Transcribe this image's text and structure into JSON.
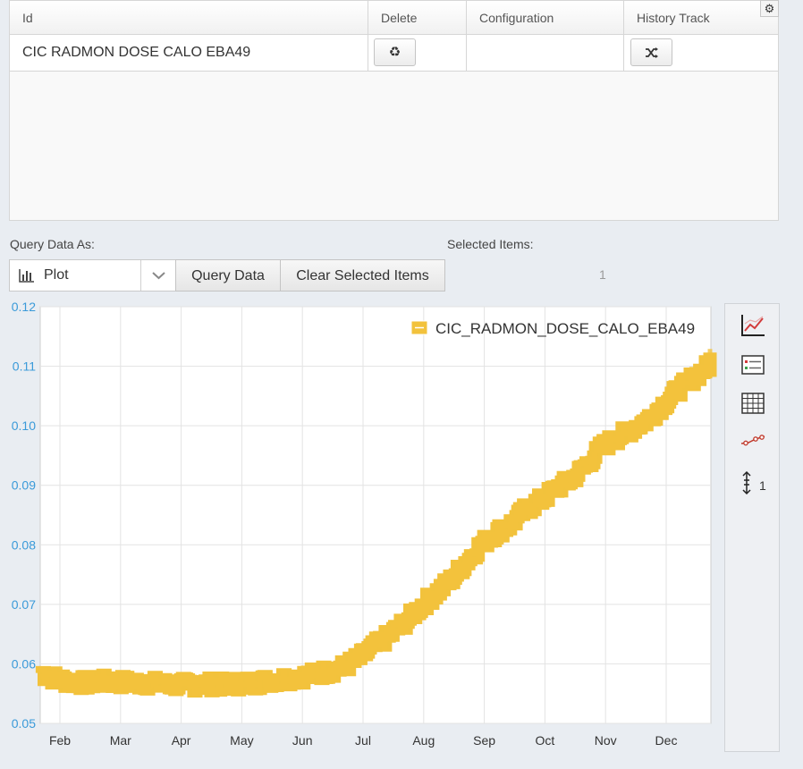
{
  "grid": {
    "columns": [
      "Id",
      "Delete",
      "Configuration",
      "History Track"
    ],
    "rows": [
      {
        "id": "CIC RADMON DOSE CALO EBA49",
        "delete_icon": "recycle-icon",
        "configuration": "",
        "history_icon": "shuffle-icon"
      }
    ],
    "settings_icon": "gear-icon"
  },
  "query": {
    "label": "Query Data As:",
    "selected_mode": "Plot",
    "mode_icon": "bar-chart-icon",
    "query_button": "Query Data",
    "clear_button": "Clear Selected Items"
  },
  "selection": {
    "label": "Selected Items:",
    "count": "1"
  },
  "sidebar": {
    "tools": [
      "line-chart-icon",
      "legend-icon",
      "grid-icon",
      "markers-icon",
      "vertical-axis-icon"
    ],
    "axis_count": "1"
  },
  "colors": {
    "series": "#f2c23c",
    "axis_text": "#3a9ad9"
  },
  "chart_data": {
    "type": "line",
    "ylim": [
      0.05,
      0.12
    ],
    "yticks": [
      "0.05",
      "0.06",
      "0.07",
      "0.08",
      "0.09",
      "0.10",
      "0.11",
      "0.12"
    ],
    "xticks": [
      "Feb",
      "Mar",
      "Apr",
      "May",
      "Jun",
      "Jul",
      "Aug",
      "Sep",
      "Oct",
      "Nov",
      "Dec"
    ],
    "legend_placement": "top-right",
    "grid": true,
    "series": [
      {
        "name": "CIC_RADMON_DOSE_CALO_EBA49",
        "x_month": [
          0.0,
          0.25,
          0.5,
          0.75,
          1.0,
          1.25,
          1.5,
          1.75,
          2.0,
          2.25,
          2.5,
          2.75,
          3.0,
          3.25,
          3.5,
          3.75,
          4.0,
          4.25,
          4.5,
          4.75,
          5.0,
          5.25,
          5.5,
          5.75,
          6.0,
          6.25,
          6.5,
          6.75,
          7.0,
          7.25,
          7.5,
          7.75,
          8.0,
          8.25,
          8.5,
          8.75,
          9.0,
          9.25,
          9.5,
          9.75,
          10.0,
          10.25,
          10.5,
          10.75,
          11.0,
          11.25,
          11.5
        ],
        "y": [
          0.0585,
          0.0575,
          0.057,
          0.0568,
          0.057,
          0.057,
          0.0568,
          0.0568,
          0.0566,
          0.0565,
          0.0565,
          0.0566,
          0.0565,
          0.0567,
          0.0568,
          0.0572,
          0.0575,
          0.0578,
          0.0582,
          0.0588,
          0.0595,
          0.061,
          0.063,
          0.0648,
          0.067,
          0.0695,
          0.0718,
          0.074,
          0.077,
          0.08,
          0.082,
          0.0835,
          0.086,
          0.0875,
          0.0895,
          0.091,
          0.0935,
          0.0965,
          0.098,
          0.0995,
          0.101,
          0.1035,
          0.106,
          0.108,
          0.11,
          0.111,
          0.1115
        ]
      }
    ]
  }
}
